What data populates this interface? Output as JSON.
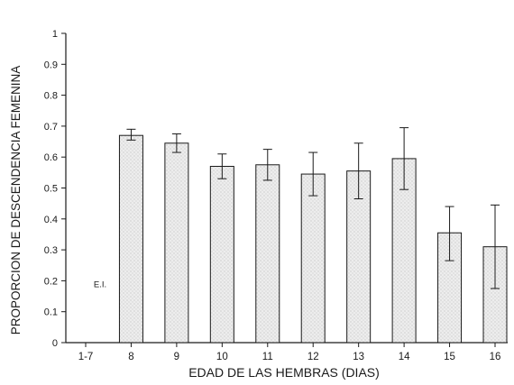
{
  "chart_data": {
    "type": "bar",
    "title": "",
    "xlabel": "EDAD DE LAS HEMBRAS (DIAS)",
    "ylabel": "PROPORCION DE DESCENDENCIA FEMENINA",
    "ylim": [
      0,
      1
    ],
    "yticks": [
      "0",
      "0.1",
      "0.2",
      "0.3",
      "0.4",
      "0.5",
      "0.6",
      "0.7",
      "0.8",
      "0.9",
      "1"
    ],
    "categories": [
      "1-7",
      "8",
      "9",
      "10",
      "11",
      "12",
      "13",
      "14",
      "15",
      "16"
    ],
    "values": [
      null,
      0.67,
      0.645,
      0.57,
      0.575,
      0.545,
      0.555,
      0.595,
      0.355,
      0.31
    ],
    "error_low": [
      null,
      0.655,
      0.615,
      0.53,
      0.525,
      0.475,
      0.465,
      0.495,
      0.265,
      0.175
    ],
    "error_high": [
      null,
      0.69,
      0.675,
      0.61,
      0.625,
      0.615,
      0.645,
      0.695,
      0.44,
      0.445
    ],
    "annotations": [
      {
        "category": "1-7",
        "text": "E.I."
      }
    ],
    "grid": false,
    "bar_fill": "#ededed",
    "bar_stroke": "#1a1a1a"
  }
}
